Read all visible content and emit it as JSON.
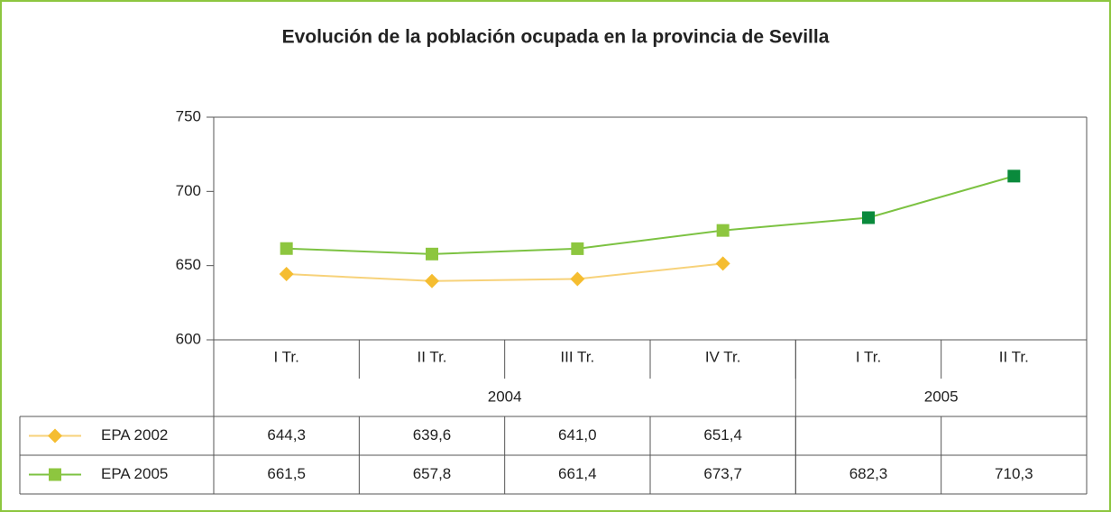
{
  "chart_data": {
    "type": "line",
    "title": "Evolución de la población ocupada en la provincia de Sevilla",
    "categories": [
      "I Tr.",
      "II Tr.",
      "III Tr.",
      "IV Tr.",
      "I Tr.",
      "II Tr."
    ],
    "groups": [
      {
        "label": "2004",
        "count": 4
      },
      {
        "label": "2005",
        "count": 2
      }
    ],
    "series": [
      {
        "name": "EPA 2002",
        "color": "#f7d27a",
        "marker": "diamond",
        "marker_colors": [
          "#f5bd30",
          "#f5bd30",
          "#f5bd30",
          "#f5bd30",
          null,
          null
        ],
        "values": [
          644.3,
          639.6,
          641.0,
          651.4,
          null,
          null
        ],
        "value_labels": [
          "644,3",
          "639,6",
          "641,0",
          "651,4",
          null,
          null
        ]
      },
      {
        "name": "EPA 2005",
        "color": "#7cc242",
        "marker": "square",
        "marker_colors": [
          "#8dc63f",
          "#8dc63f",
          "#8dc63f",
          "#8dc63f",
          "#0a8a3c",
          "#0a8a3c"
        ],
        "values": [
          661.5,
          657.8,
          661.4,
          673.7,
          682.3,
          710.3
        ],
        "value_labels": [
          "661,5",
          "657,8",
          "661,4",
          "673,7",
          "682,3",
          "710,3"
        ]
      }
    ],
    "ylim": [
      600,
      750
    ],
    "yticks": [
      600,
      650,
      700,
      750
    ],
    "grid": false
  }
}
